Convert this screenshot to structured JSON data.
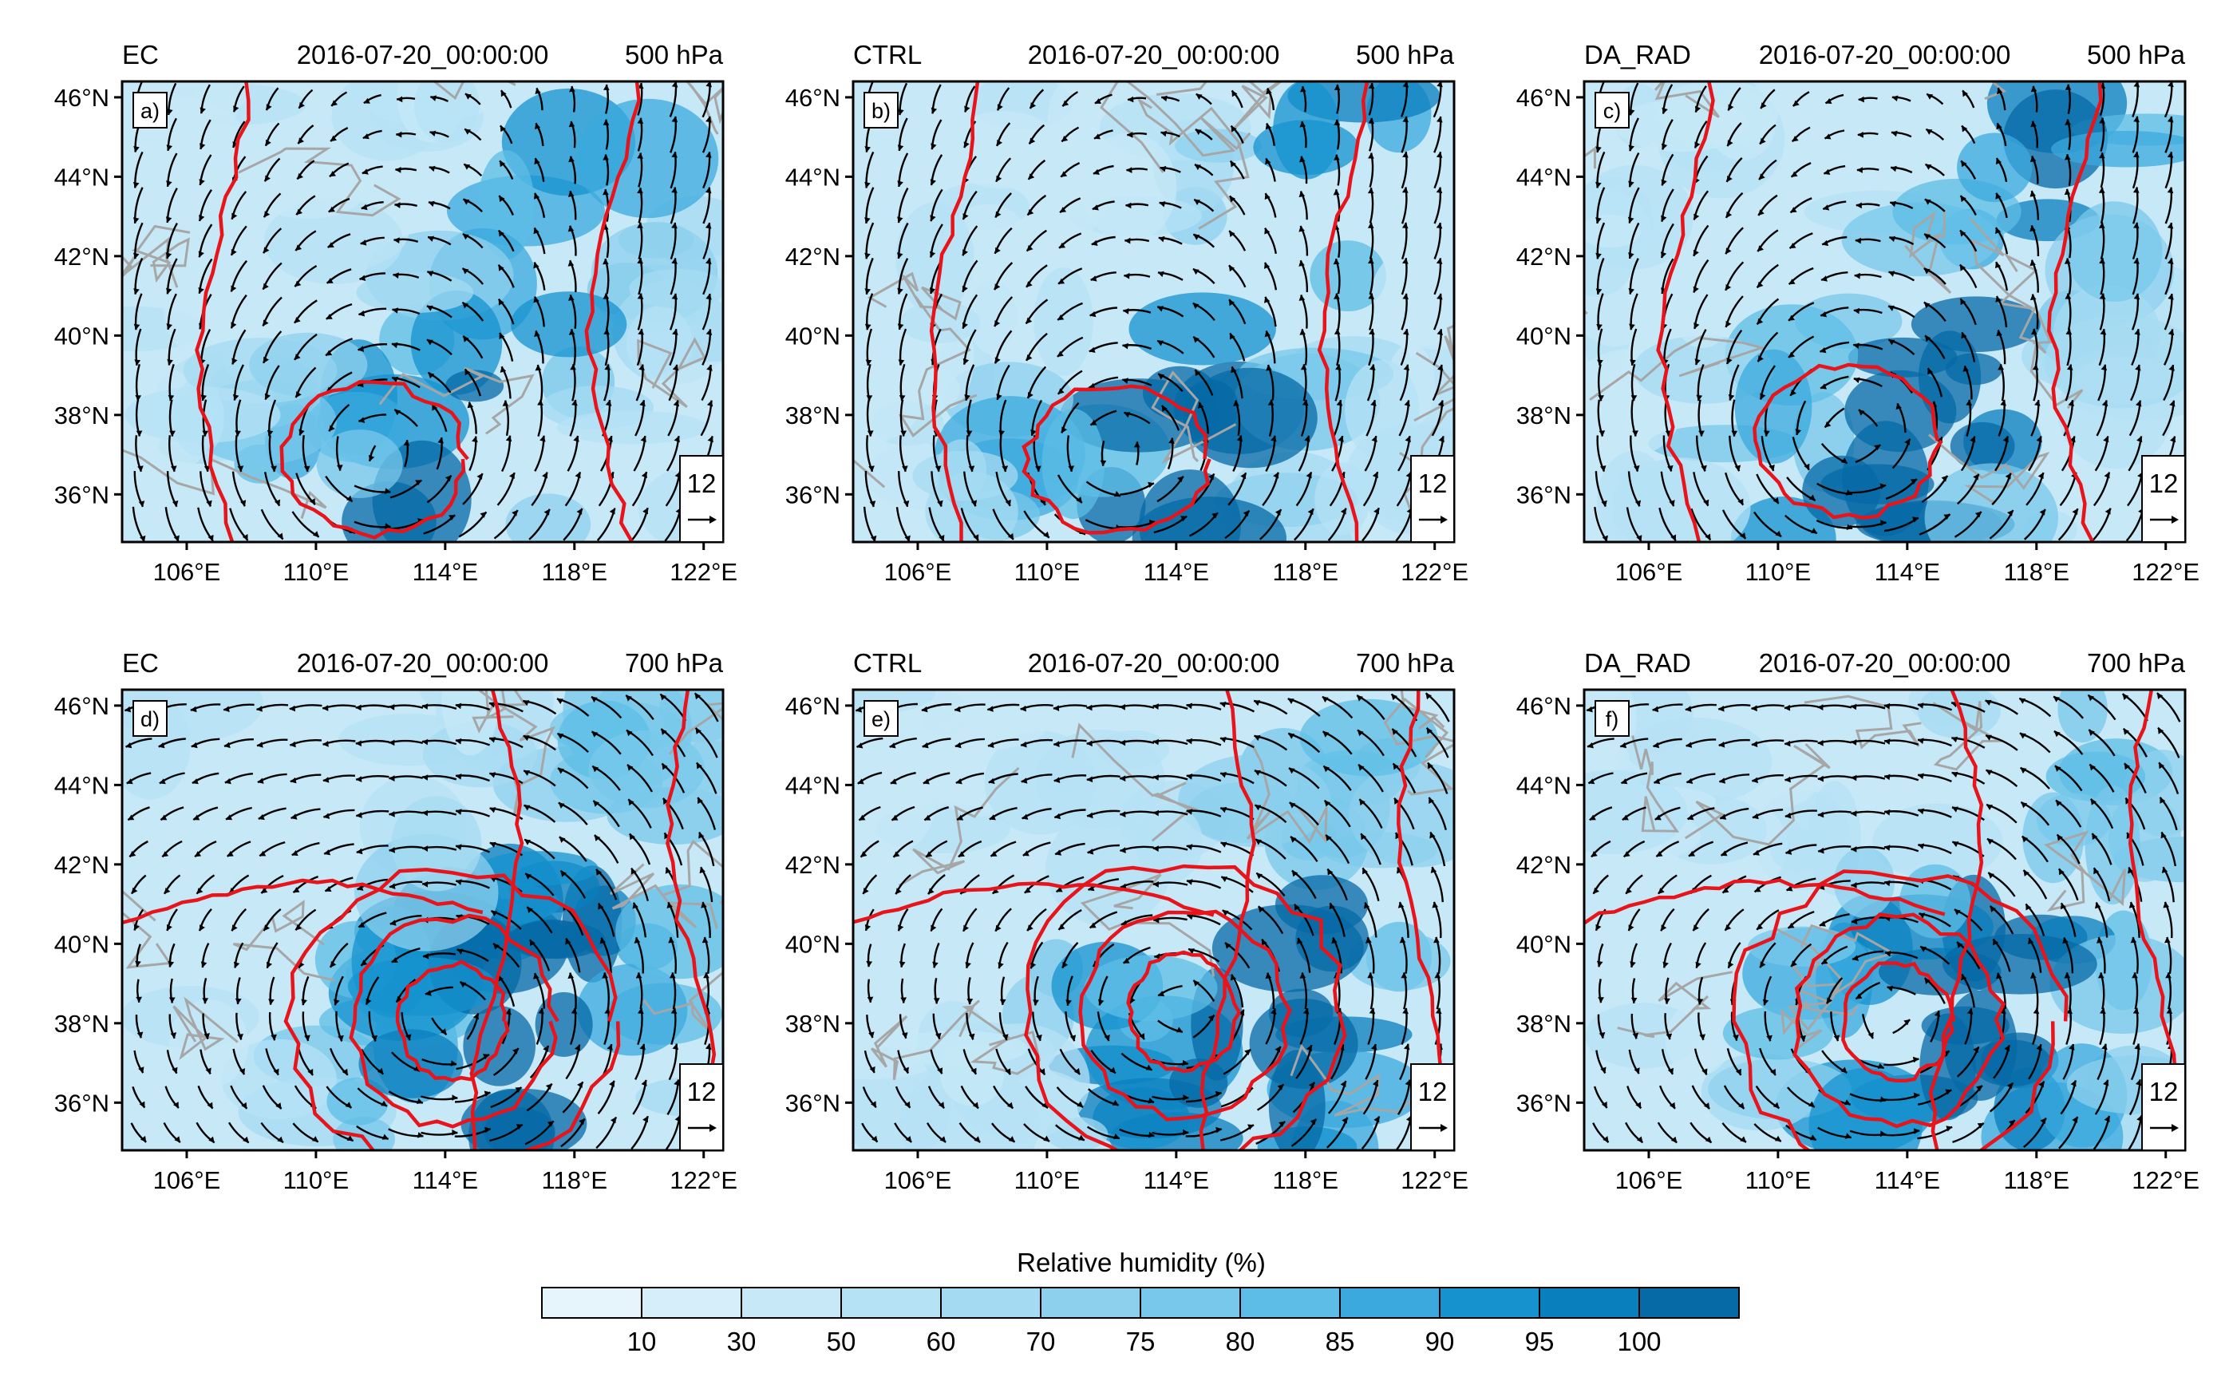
{
  "figure": {
    "panels": [
      {
        "id": "a",
        "tag": "a)",
        "source": "EC",
        "datetime": "2016-07-20_00:00:00",
        "level": "500 hPa",
        "ref_vector": "12",
        "row": 0,
        "col": 0
      },
      {
        "id": "b",
        "tag": "b)",
        "source": "CTRL",
        "datetime": "2016-07-20_00:00:00",
        "level": "500 hPa",
        "ref_vector": "12",
        "row": 0,
        "col": 1
      },
      {
        "id": "c",
        "tag": "c)",
        "source": "DA_RAD",
        "datetime": "2016-07-20_00:00:00",
        "level": "500 hPa",
        "ref_vector": "12",
        "row": 0,
        "col": 2
      },
      {
        "id": "d",
        "tag": "d)",
        "source": "EC",
        "datetime": "2016-07-20_00:00:00",
        "level": "700 hPa",
        "ref_vector": "12",
        "row": 1,
        "col": 0
      },
      {
        "id": "e",
        "tag": "e)",
        "source": "CTRL",
        "datetime": "2016-07-20_00:00:00",
        "level": "700 hPa",
        "ref_vector": "12",
        "row": 1,
        "col": 1
      },
      {
        "id": "f",
        "tag": "f)",
        "source": "DA_RAD",
        "datetime": "2016-07-20_00:00:00",
        "level": "700 hPa",
        "ref_vector": "12",
        "row": 1,
        "col": 2
      }
    ],
    "axes": {
      "lat_ticks": [
        {
          "label": "46°N",
          "value": 46
        },
        {
          "label": "44°N",
          "value": 44
        },
        {
          "label": "42°N",
          "value": 42
        },
        {
          "label": "40°N",
          "value": 40
        },
        {
          "label": "38°N",
          "value": 38
        },
        {
          "label": "36°N",
          "value": 36
        }
      ],
      "lon_ticks": [
        {
          "label": "106°E",
          "value": 106
        },
        {
          "label": "110°E",
          "value": 110
        },
        {
          "label": "114°E",
          "value": 114
        },
        {
          "label": "118°E",
          "value": 118
        },
        {
          "label": "122°E",
          "value": 122
        }
      ],
      "lat_range": [
        34.8,
        46.4
      ],
      "lon_range": [
        104,
        122.6
      ]
    },
    "colorbar": {
      "title": "Relative humidity (%)",
      "labels": [
        "10",
        "30",
        "50",
        "60",
        "70",
        "75",
        "80",
        "85",
        "90",
        "95",
        "100"
      ],
      "colors": [
        "#e6f5fb",
        "#d5eef9",
        "#c6e8f7",
        "#b6e2f5",
        "#a5dbf2",
        "#8dd0ee",
        "#78c8eb",
        "#5ebde6",
        "#3ba9dd",
        "#1693cf",
        "#0a7fbd",
        "#056aa6"
      ]
    },
    "colors": {
      "contour": "#e8141c",
      "boundary": "#a6a6a6",
      "vector": "#000000"
    }
  }
}
